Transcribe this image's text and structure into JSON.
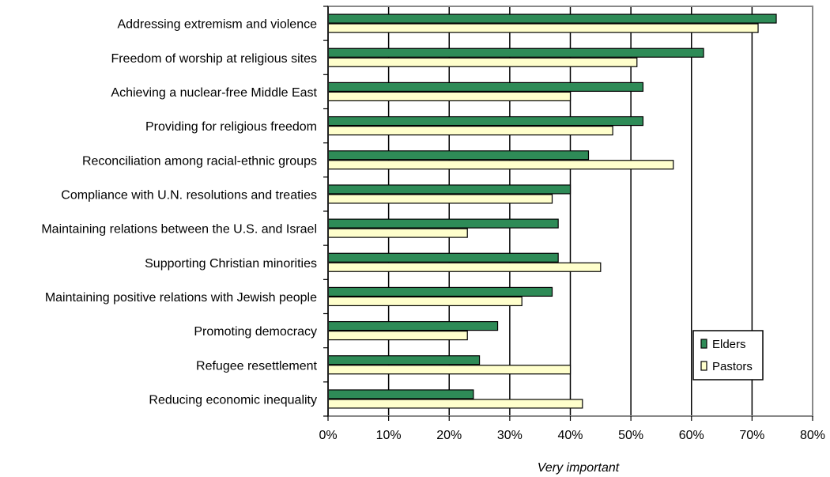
{
  "chart_data": {
    "type": "bar",
    "orientation": "horizontal",
    "categories": [
      "Addressing extremism and violence",
      "Freedom of worship at religious sites",
      "Achieving a nuclear-free Middle East",
      "Providing for religious freedom",
      "Reconciliation among racial-ethnic groups",
      "Compliance with U.N. resolutions and treaties",
      "Maintaining relations between the U.S. and Israel",
      "Supporting Christian minorities",
      "Maintaining positive relations with Jewish people",
      "Promoting democracy",
      "Refugee resettlement",
      "Reducing economic inequality"
    ],
    "series": [
      {
        "name": "Elders",
        "color": "#2e8b57",
        "values": [
          74,
          62,
          52,
          52,
          43,
          40,
          38,
          38,
          37,
          28,
          25,
          24
        ]
      },
      {
        "name": "Pastors",
        "color": "#ffffcc",
        "values": [
          71,
          51,
          40,
          47,
          57,
          37,
          23,
          45,
          32,
          23,
          40,
          42
        ]
      }
    ],
    "xlabel": "Very important",
    "xlim": [
      0,
      80
    ],
    "xticks": [
      "0%",
      "10%",
      "20%",
      "30%",
      "40%",
      "50%",
      "60%",
      "70%",
      "80%"
    ],
    "grid": true,
    "legend_position": "bottom-right"
  }
}
